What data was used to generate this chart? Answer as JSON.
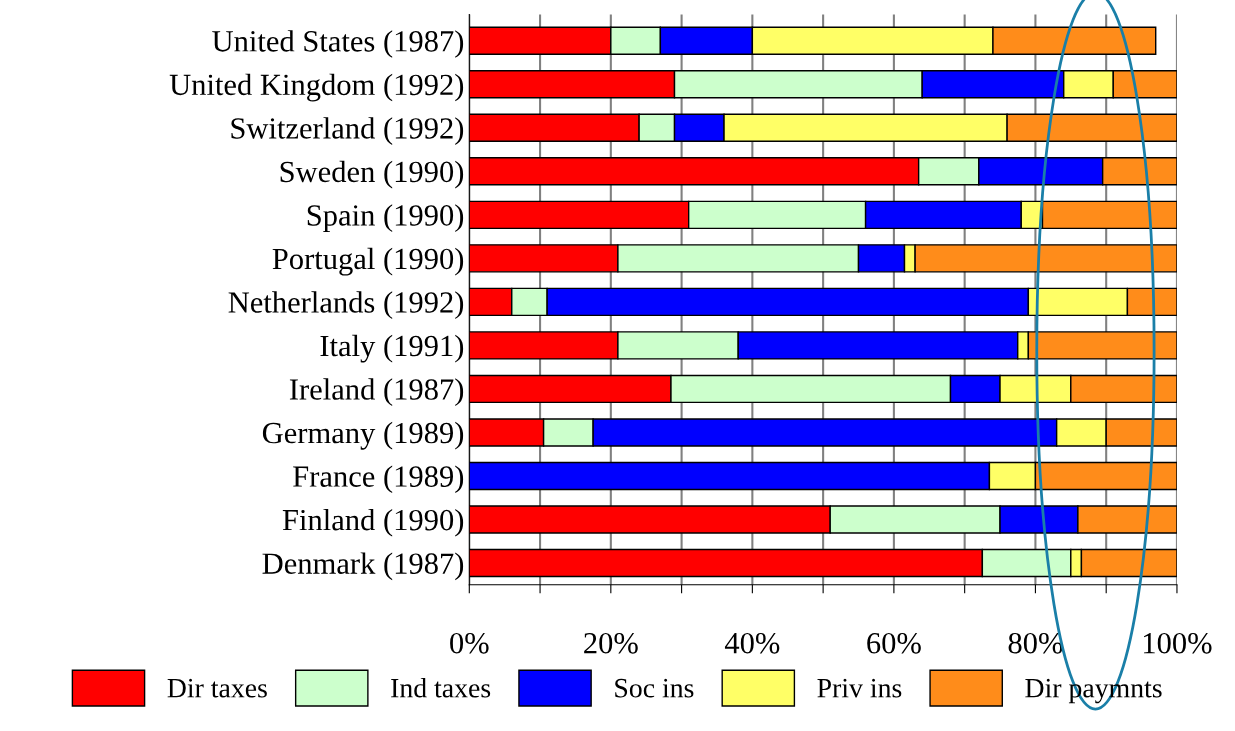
{
  "chart_data": {
    "type": "bar",
    "orientation": "horizontal",
    "stacked": true,
    "categories": [
      "United States (1987)",
      "United Kingdom (1992)",
      "Switzerland (1992)",
      "Sweden (1990)",
      "Spain (1990)",
      "Portugal (1990)",
      "Netherlands (1992)",
      "Italy (1991)",
      "Ireland (1987)",
      "Germany (1989)",
      "France (1989)",
      "Finland (1990)",
      "Denmark (1987)"
    ],
    "series": [
      {
        "name": "Dir taxes",
        "color": "#ff0000",
        "values": [
          20,
          29,
          24,
          63.5,
          31,
          21,
          6,
          21,
          28.5,
          10.5,
          0,
          51,
          72.5
        ]
      },
      {
        "name": "Ind taxes",
        "color": "#ccffcc",
        "values": [
          7,
          35,
          5,
          8.5,
          25,
          34,
          5,
          17,
          39.5,
          7,
          0,
          24,
          12.5
        ]
      },
      {
        "name": "Soc ins",
        "color": "#0000ff",
        "values": [
          13,
          20,
          7,
          17.5,
          22,
          6.5,
          68,
          39.5,
          7,
          65.5,
          73.5,
          11,
          0
        ]
      },
      {
        "name": "Priv ins",
        "color": "#ffff66",
        "values": [
          34,
          7,
          40,
          0,
          3,
          1.5,
          14,
          1.5,
          10,
          7,
          6.5,
          0,
          1.5
        ]
      },
      {
        "name": "Dir paymnts",
        "color": "#ff8c1a",
        "values": [
          23,
          9,
          24,
          10.5,
          19,
          37,
          7,
          21,
          15,
          10,
          20,
          14,
          13.5
        ]
      }
    ],
    "xlim": [
      0,
      100
    ],
    "xticks": [
      {
        "value": 0,
        "label": "0%"
      },
      {
        "value": 10,
        "label": null
      },
      {
        "value": 20,
        "label": "20%"
      },
      {
        "value": 30,
        "label": null
      },
      {
        "value": 40,
        "label": "40%"
      },
      {
        "value": 50,
        "label": null
      },
      {
        "value": 60,
        "label": "60%"
      },
      {
        "value": 70,
        "label": null
      },
      {
        "value": 80,
        "label": "80%"
      },
      {
        "value": 90,
        "label": null
      },
      {
        "value": 100,
        "label": "100%"
      }
    ],
    "grid": "x",
    "legend": "bottom"
  }
}
